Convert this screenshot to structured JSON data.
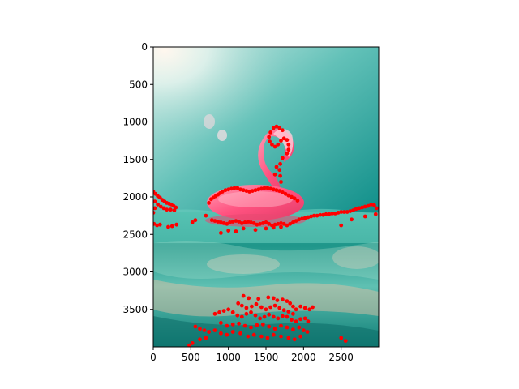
{
  "chart_data": {
    "type": "scatter",
    "title": "",
    "xlabel": "",
    "ylabel": "",
    "xlim": [
      0,
      3000
    ],
    "ylim": [
      4000,
      0
    ],
    "grid": false,
    "xticks": [
      0,
      500,
      1000,
      1500,
      2000,
      2500
    ],
    "yticks": [
      0,
      500,
      1000,
      1500,
      2000,
      2500,
      3000,
      3500
    ],
    "tick_labels_x": [
      "0",
      "500",
      "1000",
      "1500",
      "2000",
      "2500"
    ],
    "tick_labels_y": [
      "0",
      "500",
      "1000",
      "1500",
      "2000",
      "2500",
      "3000",
      "3500"
    ],
    "background_image": "photo of a pink flamingo pool float on turquoise sea water, split above and below waterline",
    "colors": {
      "points": "#ff0000",
      "water_light": "#7fd3c8",
      "water_dark": "#1e8f86",
      "flamingo": "#ff4f7b"
    },
    "series": [
      {
        "values": [
          [
            0,
            1930
          ],
          [
            30,
            1960
          ],
          [
            60,
            1990
          ],
          [
            90,
            2010
          ],
          [
            120,
            2040
          ],
          [
            150,
            2060
          ],
          [
            180,
            2080
          ],
          [
            210,
            2090
          ],
          [
            240,
            2100
          ],
          [
            270,
            2120
          ],
          [
            300,
            2140
          ],
          [
            20,
            2060
          ],
          [
            60,
            2100
          ],
          [
            100,
            2130
          ],
          [
            140,
            2150
          ],
          [
            180,
            2170
          ],
          [
            230,
            2170
          ],
          [
            280,
            2180
          ],
          [
            20,
            2150
          ],
          [
            0,
            2210
          ],
          [
            10,
            2360
          ],
          [
            50,
            2380
          ],
          [
            90,
            2370
          ],
          [
            200,
            2400
          ],
          [
            250,
            2390
          ],
          [
            310,
            2370
          ],
          [
            520,
            2340
          ],
          [
            560,
            2310
          ],
          [
            700,
            2250
          ],
          [
            740,
            2080
          ],
          [
            770,
            2030
          ],
          [
            800,
            2010
          ],
          [
            830,
            1990
          ],
          [
            860,
            1970
          ],
          [
            890,
            1950
          ],
          [
            920,
            1930
          ],
          [
            960,
            1910
          ],
          [
            1000,
            1900
          ],
          [
            1040,
            1890
          ],
          [
            1080,
            1880
          ],
          [
            1120,
            1880
          ],
          [
            1160,
            1900
          ],
          [
            1200,
            1910
          ],
          [
            1240,
            1920
          ],
          [
            1280,
            1930
          ],
          [
            1320,
            1920
          ],
          [
            1360,
            1910
          ],
          [
            1400,
            1900
          ],
          [
            1440,
            1890
          ],
          [
            1480,
            1880
          ],
          [
            1520,
            1880
          ],
          [
            1560,
            1890
          ],
          [
            1600,
            1900
          ],
          [
            1640,
            1910
          ],
          [
            1680,
            1920
          ],
          [
            1720,
            1940
          ],
          [
            1760,
            1960
          ],
          [
            1800,
            1980
          ],
          [
            1840,
            2000
          ],
          [
            1880,
            2020
          ],
          [
            1920,
            2050
          ],
          [
            1600,
            1080
          ],
          [
            1640,
            1060
          ],
          [
            1680,
            1080
          ],
          [
            1720,
            1110
          ],
          [
            1560,
            1140
          ],
          [
            1540,
            1200
          ],
          [
            1550,
            1260
          ],
          [
            1580,
            1300
          ],
          [
            1620,
            1330
          ],
          [
            1660,
            1300
          ],
          [
            1700,
            1250
          ],
          [
            1740,
            1220
          ],
          [
            1780,
            1240
          ],
          [
            1800,
            1300
          ],
          [
            1800,
            1370
          ],
          [
            1780,
            1420
          ],
          [
            1720,
            1480
          ],
          [
            1690,
            1560
          ],
          [
            1680,
            1640
          ],
          [
            1690,
            1720
          ],
          [
            1700,
            1800
          ],
          [
            1620,
            1700
          ],
          [
            1640,
            1600
          ],
          [
            780,
            2310
          ],
          [
            820,
            2320
          ],
          [
            860,
            2330
          ],
          [
            900,
            2340
          ],
          [
            940,
            2350
          ],
          [
            980,
            2360
          ],
          [
            1020,
            2340
          ],
          [
            1060,
            2330
          ],
          [
            1100,
            2320
          ],
          [
            1140,
            2330
          ],
          [
            1180,
            2350
          ],
          [
            1220,
            2340
          ],
          [
            1260,
            2330
          ],
          [
            1300,
            2340
          ],
          [
            1340,
            2350
          ],
          [
            1380,
            2370
          ],
          [
            1420,
            2360
          ],
          [
            1460,
            2350
          ],
          [
            1500,
            2340
          ],
          [
            1540,
            2360
          ],
          [
            1580,
            2380
          ],
          [
            1620,
            2370
          ],
          [
            1660,
            2360
          ],
          [
            1700,
            2350
          ],
          [
            1740,
            2360
          ],
          [
            1780,
            2380
          ],
          [
            1820,
            2360
          ],
          [
            1860,
            2340
          ],
          [
            1900,
            2320
          ],
          [
            1940,
            2300
          ],
          [
            1980,
            2290
          ],
          [
            2020,
            2280
          ],
          [
            2060,
            2270
          ],
          [
            2100,
            2260
          ],
          [
            2140,
            2250
          ],
          [
            2180,
            2250
          ],
          [
            2220,
            2240
          ],
          [
            2260,
            2240
          ],
          [
            2300,
            2230
          ],
          [
            2340,
            2230
          ],
          [
            2380,
            2220
          ],
          [
            2420,
            2220
          ],
          [
            2460,
            2210
          ],
          [
            2500,
            2200
          ],
          [
            2540,
            2200
          ],
          [
            2580,
            2200
          ],
          [
            2620,
            2190
          ],
          [
            2660,
            2180
          ],
          [
            2700,
            2160
          ],
          [
            2740,
            2150
          ],
          [
            2780,
            2140
          ],
          [
            2820,
            2130
          ],
          [
            2860,
            2120
          ],
          [
            2900,
            2100
          ],
          [
            2940,
            2110
          ],
          [
            2970,
            2150
          ],
          [
            2960,
            2230
          ],
          [
            2820,
            2260
          ],
          [
            2640,
            2300
          ],
          [
            2500,
            2380
          ],
          [
            900,
            2480
          ],
          [
            1000,
            2450
          ],
          [
            1100,
            2460
          ],
          [
            1200,
            2420
          ],
          [
            1360,
            2440
          ],
          [
            1500,
            2420
          ],
          [
            1600,
            2410
          ],
          [
            1700,
            2400
          ],
          [
            1200,
            3320
          ],
          [
            1270,
            3350
          ],
          [
            1400,
            3360
          ],
          [
            1530,
            3340
          ],
          [
            1600,
            3350
          ],
          [
            1650,
            3380
          ],
          [
            1720,
            3370
          ],
          [
            1780,
            3390
          ],
          [
            1820,
            3420
          ],
          [
            1860,
            3460
          ],
          [
            1130,
            3420
          ],
          [
            1180,
            3450
          ],
          [
            1240,
            3480
          ],
          [
            1310,
            3460
          ],
          [
            1370,
            3430
          ],
          [
            1440,
            3470
          ],
          [
            1500,
            3500
          ],
          [
            1560,
            3470
          ],
          [
            1620,
            3450
          ],
          [
            1680,
            3480
          ],
          [
            1740,
            3510
          ],
          [
            1800,
            3530
          ],
          [
            1860,
            3560
          ],
          [
            1900,
            3500
          ],
          [
            1960,
            3460
          ],
          [
            2020,
            3480
          ],
          [
            2080,
            3500
          ],
          [
            2120,
            3470
          ],
          [
            820,
            3560
          ],
          [
            880,
            3540
          ],
          [
            940,
            3520
          ],
          [
            1000,
            3500
          ],
          [
            1060,
            3540
          ],
          [
            1120,
            3580
          ],
          [
            1180,
            3600
          ],
          [
            1240,
            3560
          ],
          [
            1300,
            3540
          ],
          [
            1360,
            3580
          ],
          [
            1420,
            3620
          ],
          [
            1480,
            3600
          ],
          [
            1540,
            3570
          ],
          [
            1600,
            3600
          ],
          [
            1660,
            3620
          ],
          [
            1720,
            3590
          ],
          [
            1780,
            3600
          ],
          [
            1840,
            3640
          ],
          [
            1900,
            3660
          ],
          [
            1960,
            3630
          ],
          [
            2020,
            3620
          ],
          [
            2060,
            3660
          ],
          [
            900,
            3680
          ],
          [
            980,
            3720
          ],
          [
            1060,
            3700
          ],
          [
            1140,
            3690
          ],
          [
            1220,
            3720
          ],
          [
            1300,
            3740
          ],
          [
            1380,
            3710
          ],
          [
            1460,
            3700
          ],
          [
            1540,
            3730
          ],
          [
            1620,
            3760
          ],
          [
            1700,
            3720
          ],
          [
            1780,
            3740
          ],
          [
            1860,
            3770
          ],
          [
            1940,
            3740
          ],
          [
            2000,
            3780
          ],
          [
            2050,
            3800
          ],
          [
            560,
            3730
          ],
          [
            620,
            3760
          ],
          [
            680,
            3780
          ],
          [
            740,
            3800
          ],
          [
            820,
            3780
          ],
          [
            900,
            3820
          ],
          [
            980,
            3840
          ],
          [
            1060,
            3800
          ],
          [
            1160,
            3820
          ],
          [
            1260,
            3860
          ],
          [
            1340,
            3840
          ],
          [
            1440,
            3860
          ],
          [
            1520,
            3880
          ],
          [
            1600,
            3840
          ],
          [
            1700,
            3860
          ],
          [
            1800,
            3880
          ],
          [
            1880,
            3900
          ],
          [
            1960,
            3860
          ],
          [
            480,
            3980
          ],
          [
            520,
            3950
          ],
          [
            620,
            3900
          ],
          [
            700,
            3880
          ],
          [
            2500,
            3880
          ],
          [
            2560,
            3920
          ]
        ]
      }
    ]
  }
}
